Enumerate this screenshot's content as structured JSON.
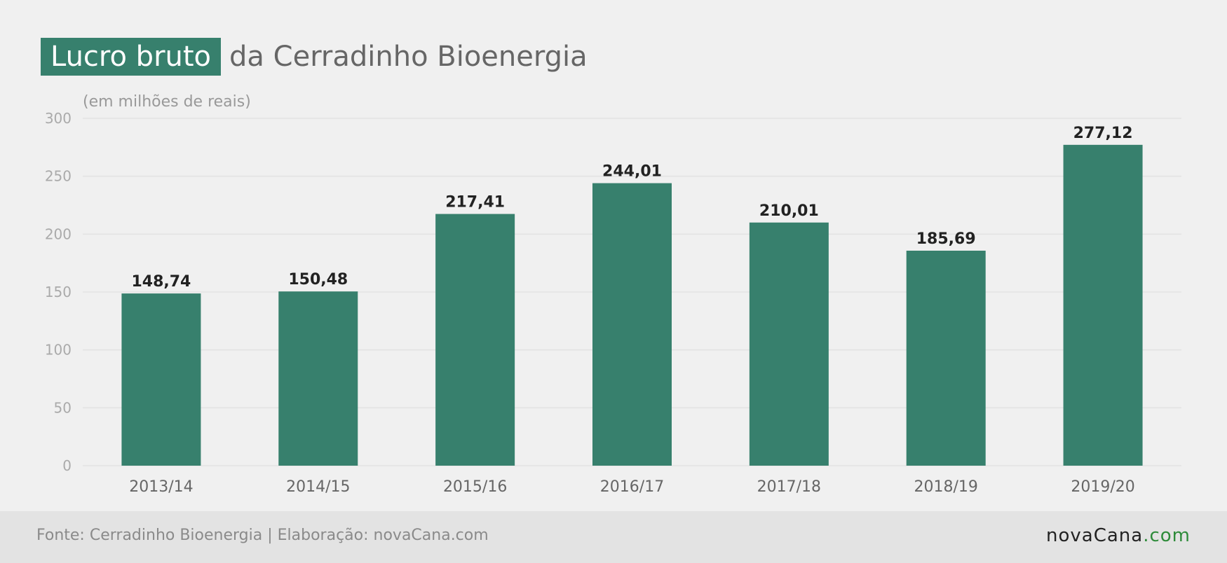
{
  "title": {
    "highlight": "Lucro bruto",
    "rest": "da Cerradinho Bioenergia"
  },
  "colors": {
    "bar": "#37806d",
    "accent": "#37806d",
    "logo_suffix": "#2e8b3a"
  },
  "footer": {
    "source": "Fonte: Cerradinho Bioenergia | Elaboração: novaCana.com",
    "logo_main": "novaCana",
    "logo_suffix": ".com"
  },
  "chart_data": {
    "type": "bar",
    "title": "Lucro bruto da Cerradinho Bioenergia",
    "ylabel": "(em milhões de reais)",
    "xlabel": "",
    "categories": [
      "2013/14",
      "2014/15",
      "2015/16",
      "2016/17",
      "2017/18",
      "2018/19",
      "2019/20"
    ],
    "values": [
      148.74,
      150.48,
      217.41,
      244.01,
      210.01,
      185.69,
      277.12
    ],
    "value_labels": [
      "148,74",
      "150,48",
      "217,41",
      "244,01",
      "210,01",
      "185,69",
      "277,12"
    ],
    "yticks": [
      0,
      50,
      100,
      150,
      200,
      250,
      300
    ],
    "ylim": [
      0,
      300
    ],
    "grid": true,
    "legend": "none"
  }
}
